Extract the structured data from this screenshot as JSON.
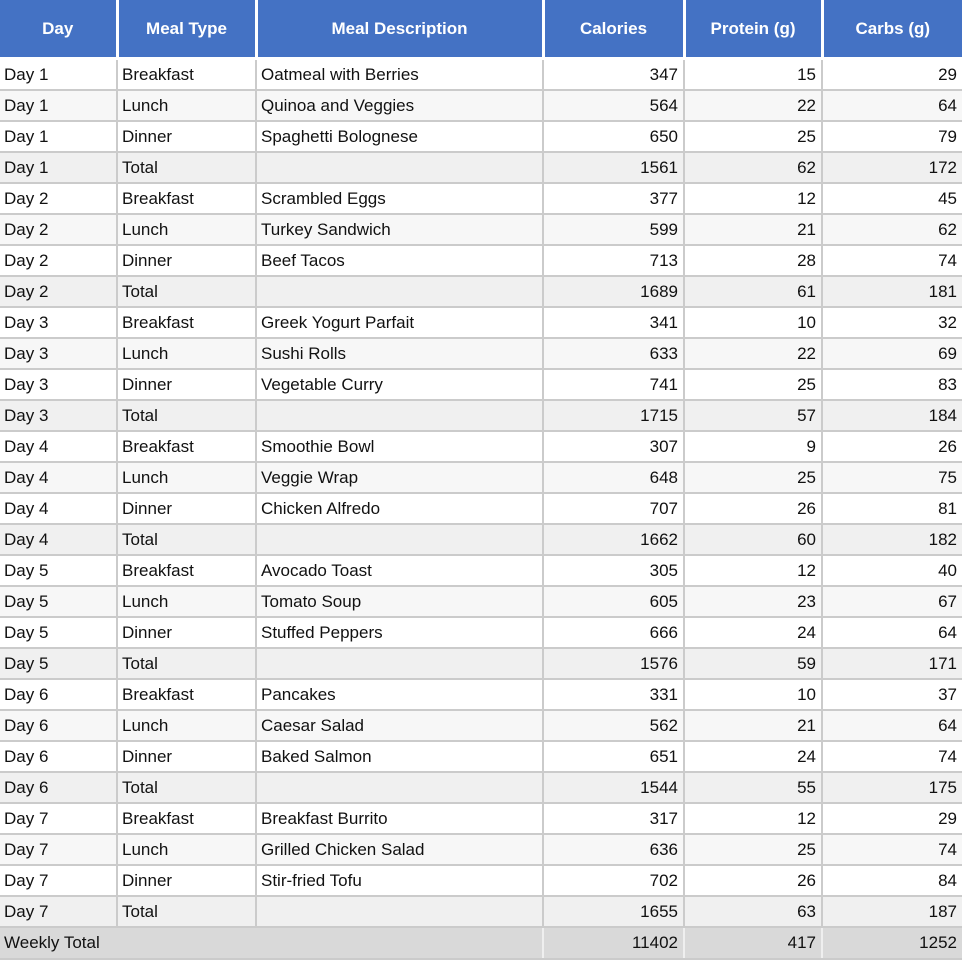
{
  "colors": {
    "header_bg": "#4472C4",
    "header_text": "#ffffff",
    "grid_line": "#cbcbcb",
    "row_white": "#ffffff",
    "row_band_light": "#f7f7f7",
    "day_total_row_bg": "#f0f0f0",
    "weekly_total_row_bg": "#d9d9d9",
    "body_text": "#111111"
  },
  "chart_data": {
    "type": "table",
    "columns": [
      "Day",
      "Meal Type",
      "Meal Description",
      "Calories",
      "Protein (g)",
      "Carbs (g)"
    ],
    "rows": [
      [
        "Day 1",
        "Breakfast",
        "Oatmeal with Berries",
        347,
        15,
        29
      ],
      [
        "Day 1",
        "Lunch",
        "Quinoa and Veggies",
        564,
        22,
        64
      ],
      [
        "Day 1",
        "Dinner",
        "Spaghetti Bolognese",
        650,
        25,
        79
      ],
      [
        "Day 1",
        "Total",
        "",
        1561,
        62,
        172
      ],
      [
        "Day 2",
        "Breakfast",
        "Scrambled Eggs",
        377,
        12,
        45
      ],
      [
        "Day 2",
        "Lunch",
        "Turkey Sandwich",
        599,
        21,
        62
      ],
      [
        "Day 2",
        "Dinner",
        "Beef Tacos",
        713,
        28,
        74
      ],
      [
        "Day 2",
        "Total",
        "",
        1689,
        61,
        181
      ],
      [
        "Day 3",
        "Breakfast",
        "Greek Yogurt Parfait",
        341,
        10,
        32
      ],
      [
        "Day 3",
        "Lunch",
        "Sushi Rolls",
        633,
        22,
        69
      ],
      [
        "Day 3",
        "Dinner",
        "Vegetable Curry",
        741,
        25,
        83
      ],
      [
        "Day 3",
        "Total",
        "",
        1715,
        57,
        184
      ],
      [
        "Day 4",
        "Breakfast",
        "Smoothie Bowl",
        307,
        9,
        26
      ],
      [
        "Day 4",
        "Lunch",
        "Veggie Wrap",
        648,
        25,
        75
      ],
      [
        "Day 4",
        "Dinner",
        "Chicken Alfredo",
        707,
        26,
        81
      ],
      [
        "Day 4",
        "Total",
        "",
        1662,
        60,
        182
      ],
      [
        "Day 5",
        "Breakfast",
        "Avocado Toast",
        305,
        12,
        40
      ],
      [
        "Day 5",
        "Lunch",
        "Tomato Soup",
        605,
        23,
        67
      ],
      [
        "Day 5",
        "Dinner",
        "Stuffed Peppers",
        666,
        24,
        64
      ],
      [
        "Day 5",
        "Total",
        "",
        1576,
        59,
        171
      ],
      [
        "Day 6",
        "Breakfast",
        "Pancakes",
        331,
        10,
        37
      ],
      [
        "Day 6",
        "Lunch",
        "Caesar Salad",
        562,
        21,
        64
      ],
      [
        "Day 6",
        "Dinner",
        "Baked Salmon",
        651,
        24,
        74
      ],
      [
        "Day 6",
        "Total",
        "",
        1544,
        55,
        175
      ],
      [
        "Day 7",
        "Breakfast",
        "Breakfast Burrito",
        317,
        12,
        29
      ],
      [
        "Day 7",
        "Lunch",
        "Grilled Chicken Salad",
        636,
        25,
        74
      ],
      [
        "Day 7",
        "Dinner",
        "Stir-fried Tofu",
        702,
        26,
        84
      ],
      [
        "Day 7",
        "Total",
        "",
        1655,
        63,
        187
      ]
    ],
    "weekly_total": [
      "Weekly Total",
      11402,
      417,
      1252
    ]
  }
}
